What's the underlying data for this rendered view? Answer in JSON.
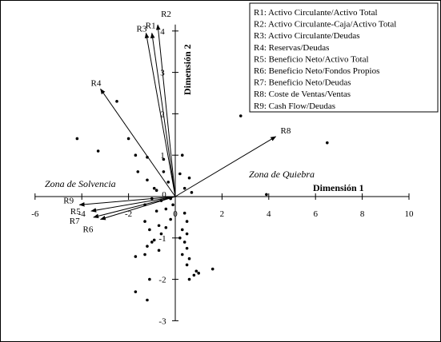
{
  "chart_data": {
    "type": "scatter",
    "title": "",
    "xlabel": "Dimensión 1",
    "ylabel": "Dimensión 2",
    "xlim": [
      -6,
      10
    ],
    "ylim": [
      -3,
      4
    ],
    "x_ticks": [
      -6,
      -4,
      -2,
      0,
      2,
      4,
      6,
      8,
      10
    ],
    "y_ticks": [
      -3,
      -2,
      -1,
      0,
      1,
      2,
      3,
      4
    ],
    "x_tick_labels": [
      "-6",
      "-4",
      "-2",
      "0",
      "2",
      "4",
      "6",
      "8",
      "10"
    ],
    "y_tick_labels": [
      "-3",
      "-2",
      "-1",
      "0",
      "1",
      "2",
      "3",
      "4"
    ],
    "annotations": [
      "Zona de Solvencia",
      "Zona de Quiebra"
    ],
    "legend": {
      "position": "top-right",
      "entries": [
        "R1: Activo Circulante/Activo Total",
        "R2: Activo Circulante-Caja/Activo Total",
        "R3: Activo Circulante/Deudas",
        "R4: Reservas/Deudas",
        "R5: Beneficio Neto/Activo Total",
        "R6: Beneficio Neto/Fondos Propios",
        "R7: Beneficio Neto/Deudas",
        "R8: Coste de Ventas/Ventas",
        "R9: Cash Flow/Deudas"
      ]
    },
    "vectors": [
      {
        "name": "R1",
        "x": -1.0,
        "y": 3.95
      },
      {
        "name": "R2",
        "x": -0.75,
        "y": 4.15
      },
      {
        "name": "R3",
        "x": -1.25,
        "y": 3.95
      },
      {
        "name": "R4",
        "x": -3.2,
        "y": 2.6
      },
      {
        "name": "R5",
        "x": -3.6,
        "y": -0.35
      },
      {
        "name": "R6",
        "x": -3.2,
        "y": -0.55
      },
      {
        "name": "R7",
        "x": -3.5,
        "y": -0.5
      },
      {
        "name": "R8",
        "x": 4.3,
        "y": 1.45
      },
      {
        "name": "R9",
        "x": -4.1,
        "y": -0.2
      }
    ],
    "points": [
      {
        "x": -2.5,
        "y": 2.3
      },
      {
        "x": -4.2,
        "y": 1.4
      },
      {
        "x": -3.3,
        "y": 1.1
      },
      {
        "x": -2.0,
        "y": 1.4
      },
      {
        "x": -1.7,
        "y": 1.0
      },
      {
        "x": -1.2,
        "y": 0.95
      },
      {
        "x": -0.5,
        "y": 0.9
      },
      {
        "x": 0.3,
        "y": 1.0
      },
      {
        "x": -1.6,
        "y": 0.6
      },
      {
        "x": -1.2,
        "y": 0.4
      },
      {
        "x": -0.9,
        "y": 0.2
      },
      {
        "x": -0.5,
        "y": 0.6
      },
      {
        "x": -0.3,
        "y": 0.35
      },
      {
        "x": 0.2,
        "y": 0.55
      },
      {
        "x": 0.4,
        "y": 0.2
      },
      {
        "x": 0.6,
        "y": 0.45
      },
      {
        "x": 0.7,
        "y": 0.1
      },
      {
        "x": -0.8,
        "y": 0.15
      },
      {
        "x": -1.0,
        "y": -0.05
      },
      {
        "x": -1.3,
        "y": -0.2
      },
      {
        "x": -0.8,
        "y": -0.35
      },
      {
        "x": -0.4,
        "y": -0.3
      },
      {
        "x": -0.1,
        "y": -0.2
      },
      {
        "x": 0.4,
        "y": -0.4
      },
      {
        "x": 0.5,
        "y": -0.6
      },
      {
        "x": 0.3,
        "y": -0.8
      },
      {
        "x": 0.5,
        "y": -0.9
      },
      {
        "x": 0.2,
        "y": -1.0
      },
      {
        "x": 0.4,
        "y": -1.1
      },
      {
        "x": 0.5,
        "y": -1.25
      },
      {
        "x": 0.3,
        "y": -1.4
      },
      {
        "x": 0.6,
        "y": -1.5
      },
      {
        "x": 0.5,
        "y": -1.65
      },
      {
        "x": 0.9,
        "y": -1.8
      },
      {
        "x": 0.8,
        "y": -1.9
      },
      {
        "x": 1.0,
        "y": -1.85
      },
      {
        "x": 0.6,
        "y": -2.0
      },
      {
        "x": 1.6,
        "y": -1.75
      },
      {
        "x": -0.7,
        "y": -0.7
      },
      {
        "x": -0.6,
        "y": -0.9
      },
      {
        "x": -0.4,
        "y": -0.75
      },
      {
        "x": -1.1,
        "y": -0.8
      },
      {
        "x": -1.3,
        "y": -0.6
      },
      {
        "x": -0.9,
        "y": -1.05
      },
      {
        "x": -1.2,
        "y": -1.2
      },
      {
        "x": -1.3,
        "y": -1.4
      },
      {
        "x": -1.7,
        "y": -1.45
      },
      {
        "x": -1.0,
        "y": -1.1
      },
      {
        "x": -0.7,
        "y": -1.3
      },
      {
        "x": -1.7,
        "y": -2.3
      },
      {
        "x": -1.2,
        "y": -2.5
      },
      {
        "x": -1.1,
        "y": -2.0
      },
      {
        "x": -0.6,
        "y": -0.1
      },
      {
        "x": -0.2,
        "y": -0.05
      },
      {
        "x": -0.2,
        "y": -0.55
      },
      {
        "x": 2.8,
        "y": 1.95
      },
      {
        "x": 6.5,
        "y": 1.3
      },
      {
        "x": 3.9,
        "y": 0.05
      }
    ]
  }
}
